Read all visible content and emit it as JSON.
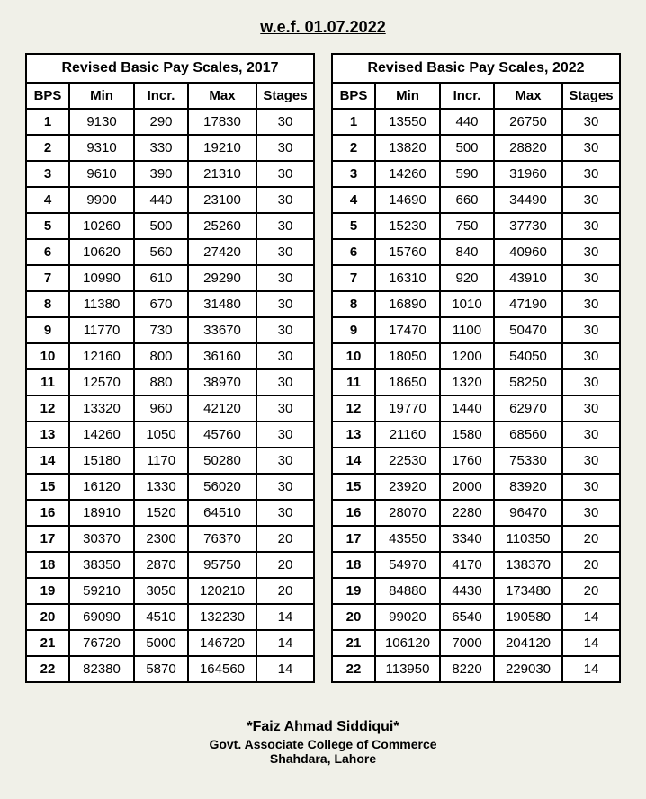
{
  "page_title": "w.e.f. 01.07.2022",
  "columns": [
    "BPS",
    "Min",
    "Incr.",
    "Max",
    "Stages"
  ],
  "colors": {
    "bg": "#f0f0e8",
    "border": "#000000",
    "text": "#000000",
    "table_bg": "#ffffff"
  },
  "tables": [
    {
      "caption": "Revised Basic Pay Scales, 2017",
      "rows": [
        [
          1,
          9130,
          290,
          17830,
          30
        ],
        [
          2,
          9310,
          330,
          19210,
          30
        ],
        [
          3,
          9610,
          390,
          21310,
          30
        ],
        [
          4,
          9900,
          440,
          23100,
          30
        ],
        [
          5,
          10260,
          500,
          25260,
          30
        ],
        [
          6,
          10620,
          560,
          27420,
          30
        ],
        [
          7,
          10990,
          610,
          29290,
          30
        ],
        [
          8,
          11380,
          670,
          31480,
          30
        ],
        [
          9,
          11770,
          730,
          33670,
          30
        ],
        [
          10,
          12160,
          800,
          36160,
          30
        ],
        [
          11,
          12570,
          880,
          38970,
          30
        ],
        [
          12,
          13320,
          960,
          42120,
          30
        ],
        [
          13,
          14260,
          1050,
          45760,
          30
        ],
        [
          14,
          15180,
          1170,
          50280,
          30
        ],
        [
          15,
          16120,
          1330,
          56020,
          30
        ],
        [
          16,
          18910,
          1520,
          64510,
          30
        ],
        [
          17,
          30370,
          2300,
          76370,
          20
        ],
        [
          18,
          38350,
          2870,
          95750,
          20
        ],
        [
          19,
          59210,
          3050,
          120210,
          20
        ],
        [
          20,
          69090,
          4510,
          132230,
          14
        ],
        [
          21,
          76720,
          5000,
          146720,
          14
        ],
        [
          22,
          82380,
          5870,
          164560,
          14
        ]
      ]
    },
    {
      "caption": "Revised Basic Pay Scales, 2022",
      "rows": [
        [
          1,
          13550,
          440,
          26750,
          30
        ],
        [
          2,
          13820,
          500,
          28820,
          30
        ],
        [
          3,
          14260,
          590,
          31960,
          30
        ],
        [
          4,
          14690,
          660,
          34490,
          30
        ],
        [
          5,
          15230,
          750,
          37730,
          30
        ],
        [
          6,
          15760,
          840,
          40960,
          30
        ],
        [
          7,
          16310,
          920,
          43910,
          30
        ],
        [
          8,
          16890,
          1010,
          47190,
          30
        ],
        [
          9,
          17470,
          1100,
          50470,
          30
        ],
        [
          10,
          18050,
          1200,
          54050,
          30
        ],
        [
          11,
          18650,
          1320,
          58250,
          30
        ],
        [
          12,
          19770,
          1440,
          62970,
          30
        ],
        [
          13,
          21160,
          1580,
          68560,
          30
        ],
        [
          14,
          22530,
          1760,
          75330,
          30
        ],
        [
          15,
          23920,
          2000,
          83920,
          30
        ],
        [
          16,
          28070,
          2280,
          96470,
          30
        ],
        [
          17,
          43550,
          3340,
          110350,
          20
        ],
        [
          18,
          54970,
          4170,
          138370,
          20
        ],
        [
          19,
          84880,
          4430,
          173480,
          20
        ],
        [
          20,
          99020,
          6540,
          190580,
          14
        ],
        [
          21,
          106120,
          7000,
          204120,
          14
        ],
        [
          22,
          113950,
          8220,
          229030,
          14
        ]
      ]
    }
  ],
  "footer": {
    "author": "*Faiz Ahmad Siddiqui*",
    "institution": "Govt. Associate College of Commerce",
    "location": "Shahdara, Lahore"
  }
}
